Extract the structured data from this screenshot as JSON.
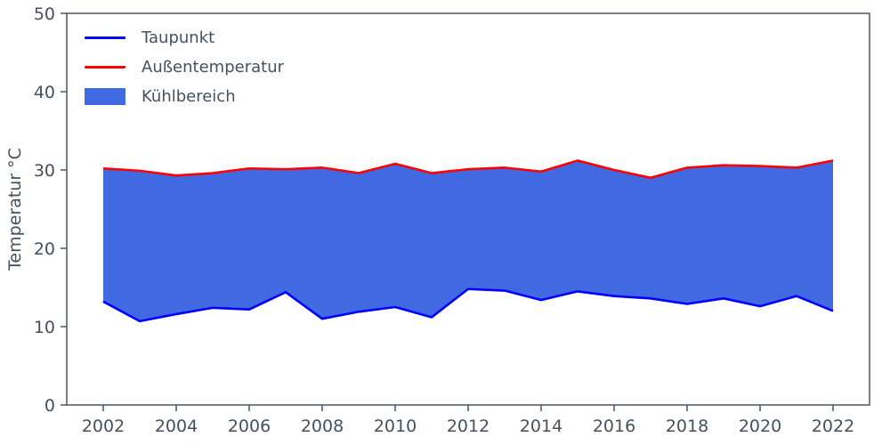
{
  "chart_data": {
    "type": "line",
    "title": "",
    "xlabel": "",
    "ylabel": "Temperatur °C",
    "ylim": [
      0,
      50
    ],
    "xlim": [
      2001,
      2023
    ],
    "xticks": [
      2002,
      2004,
      2006,
      2008,
      2010,
      2012,
      2014,
      2016,
      2018,
      2020,
      2022
    ],
    "yticks": [
      0,
      10,
      20,
      30,
      40,
      50
    ],
    "x": [
      2002,
      2003,
      2004,
      2005,
      2006,
      2007,
      2008,
      2009,
      2010,
      2011,
      2012,
      2013,
      2014,
      2015,
      2016,
      2017,
      2018,
      2019,
      2020,
      2021,
      2022
    ],
    "series": [
      {
        "name": "Taupunkt",
        "color": "#0000ff",
        "values": [
          13.2,
          10.7,
          11.6,
          12.4,
          12.2,
          14.4,
          11.0,
          11.9,
          12.5,
          11.2,
          14.8,
          14.6,
          13.4,
          14.5,
          13.9,
          13.6,
          12.9,
          13.6,
          12.6,
          13.9,
          12.0
        ]
      },
      {
        "name": "Außentemperatur",
        "color": "#ff0000",
        "values": [
          30.2,
          29.9,
          29.3,
          29.6,
          30.2,
          30.1,
          30.3,
          29.6,
          30.8,
          29.6,
          30.1,
          30.3,
          29.8,
          31.2,
          30.0,
          29.0,
          30.3,
          30.6,
          30.5,
          30.3,
          31.2
        ]
      }
    ],
    "fill": {
      "name": "Kühlbereich",
      "color": "#4169e1",
      "between": [
        "Taupunkt",
        "Außentemperatur"
      ]
    },
    "legend_position": "upper-left",
    "grid": false,
    "colors": {
      "text": "#44515c",
      "spine": "#55606a"
    }
  }
}
